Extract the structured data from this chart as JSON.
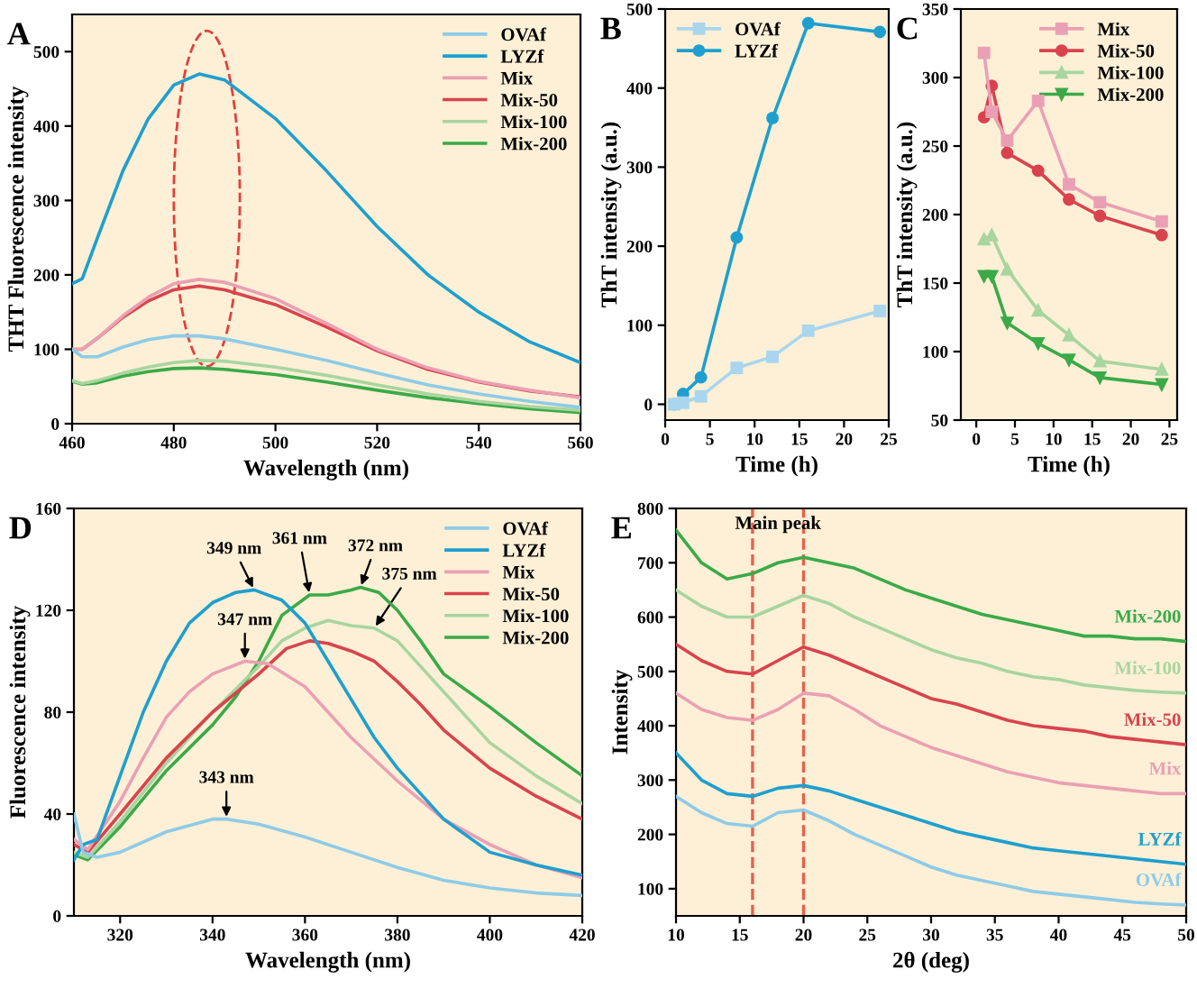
{
  "chart_data": [
    {
      "type": "line",
      "title": "A",
      "xlabel": "Wavelength (nm)",
      "ylabel": "THT Fluorescence intensity",
      "xlim": [
        460,
        560
      ],
      "ylim": [
        0,
        550
      ],
      "xticks": [
        460,
        480,
        500,
        520,
        540,
        560
      ],
      "yticks": [
        0,
        100,
        200,
        300,
        400,
        500
      ],
      "legend": "top right",
      "marker": "none",
      "x": [
        460,
        462,
        465,
        470,
        475,
        480,
        485,
        490,
        500,
        510,
        520,
        530,
        540,
        550,
        560
      ],
      "series": [
        {
          "name": "OVAf",
          "color": "#8ecbe8",
          "values": [
            100,
            90,
            90,
            103,
            113,
            118,
            118,
            114,
            100,
            85,
            68,
            52,
            40,
            30,
            22
          ]
        },
        {
          "name": "LYZf",
          "color": "#1e9fcf",
          "values": [
            188,
            195,
            250,
            340,
            410,
            455,
            470,
            462,
            410,
            340,
            265,
            200,
            150,
            110,
            82
          ]
        },
        {
          "name": "Mix",
          "color": "#eaa0b4",
          "values": [
            100,
            100,
            115,
            145,
            170,
            188,
            194,
            190,
            168,
            135,
            100,
            75,
            57,
            45,
            35
          ]
        },
        {
          "name": "Mix-50",
          "color": "#d9434e",
          "values": [
            100,
            100,
            115,
            143,
            165,
            180,
            185,
            180,
            160,
            130,
            98,
            73,
            56,
            44,
            36
          ]
        },
        {
          "name": "Mix-100",
          "color": "#a8d5a0",
          "values": [
            58,
            54,
            58,
            68,
            76,
            82,
            85,
            84,
            76,
            65,
            52,
            40,
            30,
            23,
            18
          ]
        },
        {
          "name": "Mix-200",
          "color": "#3aaa48",
          "values": [
            57,
            53,
            55,
            64,
            70,
            74,
            75,
            73,
            66,
            56,
            45,
            35,
            27,
            20,
            15
          ]
        }
      ]
    },
    {
      "type": "line",
      "title": "B",
      "xlabel": "Time (h)",
      "ylabel": "ThT intensity (a.u.)",
      "xlim": [
        0,
        25
      ],
      "ylim": [
        -20,
        500
      ],
      "xticks": [
        0,
        5,
        10,
        15,
        20,
        25
      ],
      "yticks": [
        0,
        100,
        200,
        300,
        400,
        500
      ],
      "legend": "top left",
      "x": [
        1,
        2,
        4,
        8,
        12,
        16,
        24
      ],
      "series": [
        {
          "name": "OVAf",
          "color": "#a9d6ee",
          "marker": "square",
          "values": [
            0,
            2,
            10,
            46,
            60,
            93,
            118
          ]
        },
        {
          "name": "LYZf",
          "color": "#1e9fcf",
          "marker": "circle",
          "values": [
            0,
            13,
            34,
            211,
            362,
            482,
            471
          ]
        }
      ]
    },
    {
      "type": "line",
      "title": "C",
      "xlabel": "Time (h)",
      "ylabel": "ThT intensity (a.u.)",
      "xlim": [
        -2,
        26
      ],
      "ylim": [
        50,
        350
      ],
      "xticks": [
        0,
        5,
        10,
        15,
        20,
        25
      ],
      "yticks": [
        50,
        100,
        150,
        200,
        250,
        300,
        350
      ],
      "legend": "top right",
      "x": [
        1,
        2,
        4,
        8,
        12,
        16,
        24
      ],
      "series": [
        {
          "name": "Mix",
          "color": "#eaa0b4",
          "marker": "square",
          "values": [
            318,
            275,
            254,
            283,
            222,
            209,
            195
          ]
        },
        {
          "name": "Mix-50",
          "color": "#d9434e",
          "marker": "circle",
          "values": [
            271,
            294,
            245,
            232,
            211,
            199,
            185
          ]
        },
        {
          "name": "Mix-100",
          "color": "#a8d5a0",
          "marker": "triangle",
          "values": [
            182,
            185,
            160,
            130,
            112,
            93,
            87
          ]
        },
        {
          "name": "Mix-200",
          "color": "#3aaa48",
          "marker": "triangle_down",
          "values": [
            155,
            155,
            121,
            106,
            94,
            81,
            76
          ]
        }
      ]
    },
    {
      "type": "line",
      "title": "D",
      "xlabel": "Wavelength (nm)",
      "ylabel": "Fluorescence intensity",
      "xlim": [
        310,
        420
      ],
      "ylim": [
        0,
        160
      ],
      "xticks": [
        320,
        340,
        360,
        380,
        400,
        420
      ],
      "yticks": [
        0,
        40,
        80,
        120,
        160
      ],
      "legend": "top right",
      "marker": "none",
      "annotations": [
        {
          "text": "349 nm",
          "x": 349,
          "y": 128
        },
        {
          "text": "347 nm",
          "x": 347,
          "y": 100
        },
        {
          "text": "361 nm",
          "x": 361,
          "y": 126
        },
        {
          "text": "372 nm",
          "x": 372,
          "y": 129
        },
        {
          "text": "375 nm",
          "x": 375,
          "y": 113
        },
        {
          "text": "343 nm",
          "x": 343,
          "y": 38
        }
      ],
      "series": [
        {
          "name": "OVAf",
          "color": "#8ecbe8",
          "x": [
            310,
            312,
            315,
            320,
            330,
            340,
            343,
            350,
            360,
            370,
            380,
            390,
            400,
            410,
            420
          ],
          "values": [
            40,
            25,
            23,
            25,
            33,
            38,
            38,
            36,
            31,
            25,
            19,
            14,
            11,
            9,
            8
          ]
        },
        {
          "name": "LYZf",
          "color": "#1e9fcf",
          "x": [
            310,
            312,
            315,
            320,
            325,
            330,
            335,
            340,
            345,
            349,
            355,
            360,
            365,
            370,
            375,
            380,
            390,
            400,
            410,
            420
          ],
          "values": [
            22,
            28,
            30,
            55,
            80,
            100,
            115,
            123,
            127,
            128,
            124,
            115,
            100,
            85,
            70,
            58,
            38,
            25,
            20,
            16
          ]
        },
        {
          "name": "Mix",
          "color": "#eaa0b4",
          "x": [
            310,
            313,
            320,
            325,
            330,
            335,
            340,
            347,
            352,
            360,
            365,
            370,
            380,
            390,
            400,
            410,
            420
          ],
          "values": [
            30,
            26,
            45,
            62,
            78,
            88,
            95,
            100,
            99,
            90,
            80,
            70,
            53,
            38,
            28,
            20,
            15
          ]
        },
        {
          "name": "Mix-50",
          "color": "#d9434e",
          "x": [
            310,
            313,
            320,
            330,
            340,
            350,
            356,
            361,
            365,
            370,
            375,
            380,
            385,
            390,
            400,
            410,
            420
          ],
          "values": [
            28,
            25,
            40,
            62,
            80,
            95,
            105,
            108,
            107,
            104,
            100,
            92,
            83,
            73,
            58,
            47,
            38
          ]
        },
        {
          "name": "Mix-100",
          "color": "#a8d5a0",
          "x": [
            310,
            313,
            320,
            330,
            340,
            350,
            355,
            360,
            365,
            370,
            375,
            380,
            390,
            400,
            410,
            420
          ],
          "values": [
            25,
            23,
            37,
            60,
            80,
            98,
            108,
            113,
            116,
            114,
            113,
            108,
            88,
            68,
            55,
            44
          ]
        },
        {
          "name": "Mix-200",
          "color": "#3aaa48",
          "x": [
            310,
            313,
            320,
            330,
            340,
            345,
            350,
            355,
            361,
            365,
            370,
            372,
            376,
            380,
            385,
            390,
            400,
            410,
            420
          ],
          "values": [
            24,
            22,
            35,
            57,
            75,
            86,
            100,
            118,
            126,
            126,
            128,
            129,
            127,
            120,
            108,
            95,
            82,
            68,
            55
          ]
        }
      ]
    },
    {
      "type": "line",
      "title": "E",
      "xlabel": "2θ (deg)",
      "ylabel": "Intensity",
      "xlim": [
        10,
        50
      ],
      "ylim": [
        50,
        800
      ],
      "xticks": [
        10,
        15,
        20,
        25,
        30,
        35,
        40,
        45,
        50
      ],
      "yticks": [
        100,
        200,
        300,
        400,
        500,
        600,
        700,
        800
      ],
      "legend": false,
      "marker": "none",
      "x": [
        10,
        12,
        14,
        16,
        18,
        20,
        22,
        24,
        26,
        28,
        30,
        32,
        34,
        36,
        38,
        40,
        42,
        44,
        46,
        48,
        50
      ],
      "annotations": [
        "Main peak"
      ],
      "ref_lines": [
        {
          "axis": "x",
          "value": 16,
          "color": "#e8604c",
          "line_style": "dashed"
        },
        {
          "axis": "x",
          "value": 20,
          "color": "#e8604c",
          "line_style": "dashed"
        }
      ],
      "series": [
        {
          "name": "Mix-200",
          "color": "#3aaa48",
          "values": [
            760,
            700,
            670,
            680,
            700,
            710,
            700,
            690,
            670,
            650,
            635,
            620,
            605,
            595,
            585,
            575,
            565,
            565,
            560,
            560,
            555
          ]
        },
        {
          "name": "Mix-100",
          "color": "#a8d5a0",
          "values": [
            650,
            620,
            600,
            600,
            620,
            640,
            625,
            600,
            580,
            560,
            540,
            525,
            515,
            500,
            490,
            485,
            475,
            470,
            465,
            462,
            460
          ]
        },
        {
          "name": "Mix-50",
          "color": "#d9434e",
          "values": [
            550,
            520,
            500,
            495,
            520,
            545,
            530,
            510,
            490,
            470,
            450,
            440,
            425,
            410,
            400,
            395,
            390,
            380,
            375,
            370,
            365
          ]
        },
        {
          "name": "Mix",
          "color": "#eaa0b4",
          "values": [
            460,
            430,
            415,
            410,
            430,
            460,
            455,
            430,
            400,
            380,
            360,
            345,
            330,
            315,
            305,
            295,
            290,
            285,
            280,
            275,
            275
          ]
        },
        {
          "name": "LYZf",
          "color": "#1e9fcf",
          "values": [
            350,
            300,
            275,
            270,
            285,
            290,
            280,
            265,
            250,
            235,
            220,
            205,
            195,
            185,
            175,
            170,
            165,
            160,
            155,
            150,
            145
          ]
        },
        {
          "name": "OVAf",
          "color": "#8ecbe8",
          "values": [
            270,
            240,
            220,
            215,
            240,
            245,
            225,
            200,
            180,
            160,
            140,
            125,
            115,
            105,
            95,
            90,
            85,
            80,
            75,
            72,
            70
          ]
        }
      ]
    }
  ]
}
